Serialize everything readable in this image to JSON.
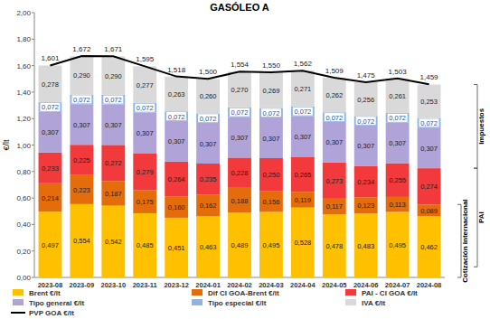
{
  "chart_data": {
    "type": "bar",
    "title": "GASÓLEO A",
    "y_label": "€/lt",
    "stacked": true,
    "data_labels": true,
    "grid": false,
    "legend": "bottom",
    "categories": [
      "2023-08",
      "2023-09",
      "2023-10",
      "2023-11",
      "2023-12",
      "2024-01",
      "2024-02",
      "2024-03",
      "2024-04",
      "2024-05",
      "2024-06",
      "2024-07",
      "2024-08"
    ],
    "ylim": [
      0,
      2
    ],
    "yticks": [
      {
        "value": 0,
        "label": "0,00"
      },
      {
        "value": 0.2,
        "label": "0,20"
      },
      {
        "value": 0.4,
        "label": "0,40"
      },
      {
        "value": 0.6,
        "label": "0,60"
      },
      {
        "value": 0.8,
        "label": "0,80"
      },
      {
        "value": 1,
        "label": "1,00"
      },
      {
        "value": 1.2,
        "label": "1,20"
      },
      {
        "value": 1.4,
        "label": "1,40"
      },
      {
        "value": 1.6,
        "label": "1,60"
      },
      {
        "value": 1.8,
        "label": "1,80"
      },
      {
        "value": 2,
        "label": "2,00"
      }
    ],
    "annotations": [
      "Impuestos",
      "PAI",
      "Cotización internacional"
    ],
    "series": [
      {
        "name": "Brent €/lt",
        "color": "#FFC000",
        "type": "bar",
        "values": [
          0.497,
          0.554,
          0.542,
          0.485,
          0.451,
          0.463,
          0.489,
          0.495,
          0.528,
          0.478,
          0.483,
          0.495,
          0.462
        ],
        "value_labels": [
          "0,497",
          "0,554",
          "0,542",
          "0,485",
          "0,451",
          "0,463",
          "0,489",
          "0,495",
          "0,528",
          "0,478",
          "0,483",
          "0,495",
          "0,462"
        ]
      },
      {
        "name": "Dif CI GOA-Brent €/lt",
        "color": "#E46C0A",
        "type": "bar",
        "values": [
          0.214,
          0.223,
          0.187,
          0.175,
          0.16,
          0.162,
          0.188,
          0.156,
          0.119,
          0.117,
          0.123,
          0.113,
          0.089
        ],
        "value_labels": [
          "0,214",
          "0,223",
          "0,187",
          "0,175",
          "0,160",
          "0,162",
          "0,188",
          "0,156",
          "0,119",
          "0,117",
          "0,123",
          "0,113",
          "0,089"
        ]
      },
      {
        "name": "PAI - CI GOA €/lt",
        "color": "#F2393B",
        "type": "bar",
        "values": [
          0.233,
          0.225,
          0.272,
          0.279,
          0.264,
          0.235,
          0.228,
          0.25,
          0.265,
          0.273,
          0.234,
          0.255,
          0.274
        ],
        "value_labels": [
          "0,233",
          "0,225",
          "0,272",
          "0,279",
          "0,264",
          "0,235",
          "0,228",
          "0,250",
          "0,265",
          "0,273",
          "0,234",
          "0,255",
          "0,274"
        ]
      },
      {
        "name": "Tipo general €/lt",
        "color": "#AFA3D8",
        "type": "bar",
        "values": [
          0.307,
          0.307,
          0.307,
          0.307,
          0.307,
          0.307,
          0.307,
          0.307,
          0.307,
          0.307,
          0.307,
          0.307,
          0.307
        ],
        "value_labels": [
          "0,307",
          "0,307",
          "0,307",
          "0,307",
          "0,307",
          "0,307",
          "0,307",
          "0,307",
          "0,307",
          "0,307",
          "0,307",
          "0,307",
          "0,307"
        ]
      },
      {
        "name": "Tipo especial €/lt",
        "color": "#8EB4E3",
        "type": "bar",
        "values": [
          0.072,
          0.072,
          0.072,
          0.072,
          0.072,
          0.072,
          0.072,
          0.072,
          0.072,
          0.072,
          0.072,
          0.072,
          0.072
        ],
        "value_labels": [
          "0,072",
          "0,072",
          "0,072",
          "0,072",
          "0,072",
          "0,072",
          "0,072",
          "0,072",
          "0,072",
          "0,072",
          "0,072",
          "0,072",
          "0,072"
        ]
      },
      {
        "name": "IVA €/lt",
        "color": "#D9D9D9",
        "type": "bar",
        "values": [
          0.278,
          0.29,
          0.29,
          0.277,
          0.263,
          0.26,
          0.27,
          0.269,
          0.271,
          0.262,
          0.256,
          0.261,
          0.253
        ],
        "value_labels": [
          "0,278",
          "0,290",
          "0,290",
          "0,277",
          "0,263",
          "0,260",
          "0,270",
          "0,269",
          "0,271",
          "0,262",
          "0,256",
          "0,261",
          "0,253"
        ]
      },
      {
        "name": "PVP GOA €/lt",
        "color": "#000000",
        "type": "line",
        "values": [
          1.601,
          1.672,
          1.671,
          1.595,
          1.518,
          1.5,
          1.554,
          1.55,
          1.562,
          1.509,
          1.475,
          1.503,
          1.459
        ],
        "value_labels": [
          "1,601",
          "1,672",
          "1,671",
          "1,595",
          "1,518",
          "1,500",
          "1,554",
          "1,550",
          "1,562",
          "1,509",
          "1,475",
          "1,503",
          "1,459"
        ]
      }
    ]
  }
}
